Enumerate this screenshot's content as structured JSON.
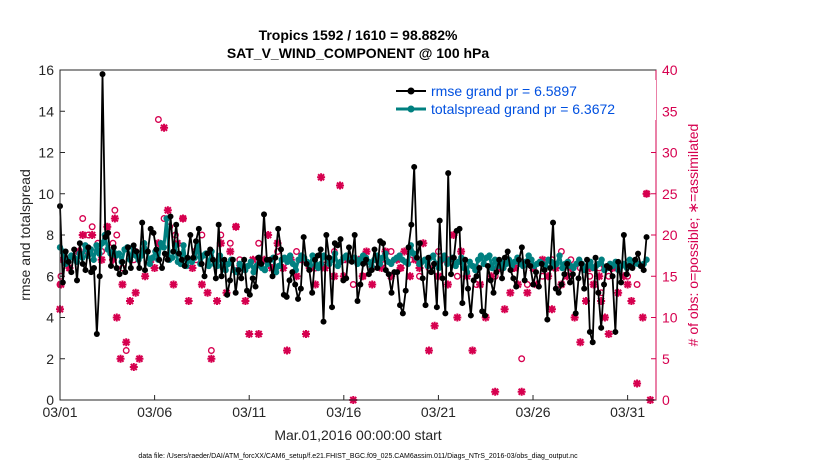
{
  "chart_data": {
    "type": "line",
    "title": "Tropics 1592 / 1610 = 98.882%",
    "subtitle": "SAT_V_WIND_COMPONENT @ 100 hPa",
    "xlabel": "Mar.01,2016 00:00:00 start",
    "ylabel_left": "rmse and totalspread",
    "ylabel_right": "# of obs: o=possible; ∗=assimilated",
    "footer": "data file: /Users/raeder/DAI/ATM_forcXX/CAM6_setup/f.e21.FHIST_BGC.f09_025.CAM6assim.011/Diags_NTrS_2016-03/obs_diag_output.nc",
    "xlim": [
      0,
      31.5
    ],
    "ylim_left": [
      0,
      16
    ],
    "ylim_right": [
      0,
      40
    ],
    "x_ticks": [
      0,
      5,
      10,
      15,
      20,
      25,
      30
    ],
    "x_tick_labels": [
      "03/01",
      "03/06",
      "03/11",
      "03/16",
      "03/21",
      "03/26",
      "03/31"
    ],
    "y_ticks_left": [
      0,
      2,
      4,
      6,
      8,
      10,
      12,
      14,
      16
    ],
    "y_ticks_right": [
      0,
      5,
      10,
      15,
      20,
      25,
      30,
      35,
      40
    ],
    "colors": {
      "rmse": "#000000",
      "spread": "#008080",
      "obs": "#d6004f",
      "legend_text": "#0050e0",
      "right_axis": "#d6004f"
    },
    "series": [
      {
        "name": "rmse grand pr = 6.5897",
        "axis": "left",
        "values": [
          9.4,
          5.7,
          7.2,
          6.7,
          6.2,
          7.3,
          5.8,
          7.6,
          6.6,
          6.3,
          7.4,
          6.2,
          6.4,
          3.2,
          6.0,
          15.8,
          7.9,
          8.1,
          6.5,
          7.4,
          6.4,
          6.1,
          6.7,
          6.2,
          7.4,
          6.4,
          7.5,
          7.2,
          6.4,
          8.6,
          6.3,
          7.2,
          8.3,
          8.1,
          7.3,
          6.8,
          6.4,
          7.1,
          6.8,
          8.9,
          7.2,
          8.5,
          7.1,
          6.8,
          6.5,
          6.9,
          8.0,
          6.9,
          7.7,
          8.3,
          6.6,
          6.0,
          7.1,
          7.3,
          6.8,
          5.9,
          8.5,
          6.0,
          6.8,
          5.1,
          5.8,
          6.8,
          5.2,
          6.3,
          5.9,
          6.8,
          5.3,
          5.1,
          5.9,
          5.5,
          6.9,
          6.6,
          9.0,
          6.8,
          6.8,
          6.0,
          6.9,
          8.3,
          7.3,
          5.1,
          5.0,
          5.8,
          6.2,
          5.6,
          4.9,
          5.4,
          7.9,
          6.6,
          6.3,
          5.2,
          6.8,
          7.0,
          7.3,
          3.8,
          8.0,
          6.9,
          4.5,
          7.6,
          7.5,
          7.8,
          5.8,
          5.9,
          7.4,
          6.7,
          8.0,
          4.8,
          5.6,
          6.6,
          6.8,
          6.1,
          6.3,
          7.3,
          6.4,
          7.7,
          7.6,
          6.3,
          6.1,
          5.2,
          6.2,
          6.2,
          4.6,
          4.2,
          5.3,
          7.4,
          8.5,
          11.3,
          6.9,
          7.6,
          5.9,
          4.6,
          6.9,
          6.2,
          6.6,
          4.5,
          8.7,
          5.9,
          4.2,
          11.0,
          6.1,
          6.9,
          8.2,
          8.3,
          4.7,
          6.8,
          5.4,
          4.1,
          5.8,
          6.0,
          6.4,
          4.3,
          4.1,
          6.5,
          5.8,
          5.2,
          6.2,
          6.8,
          5.9,
          6.9,
          7.2,
          6.3,
          5.9,
          5.5,
          6.8,
          7.4,
          5.8,
          6.7,
          6.5,
          5.6,
          6.2,
          5.5,
          6.6,
          6.3,
          3.9,
          6.4,
          8.6,
          5.4,
          5.2,
          5.6,
          6.1,
          6.6,
          5.7,
          6.1,
          4.2,
          5.9,
          6.6,
          5.4,
          6.8,
          3.3,
          2.8,
          6.9,
          5.2,
          3.5,
          5.6,
          6.5,
          6.4,
          6.0,
          3.3,
          6.7,
          5.7,
          8.0,
          6.1,
          6.5,
          6.4,
          6.8,
          7.1,
          6.5,
          6.3,
          7.9
        ]
      },
      {
        "name": "totalspread grand pr = 6.3672",
        "axis": "left",
        "values": [
          7.4,
          7.2,
          6.6,
          6.8,
          7.0,
          6.9,
          6.7,
          7.1,
          6.9,
          7.5,
          7.0,
          7.3,
          6.8,
          7.5,
          7.1,
          7.6,
          8.0,
          7.3,
          7.1,
          7.2,
          7.0,
          7.1,
          6.7,
          7.3,
          7.4,
          6.8,
          7.4,
          7.0,
          6.8,
          7.0,
          7.6,
          7.2,
          6.6,
          6.9,
          7.2,
          6.8,
          7.6,
          7.4,
          8.8,
          6.8,
          6.9,
          7.5,
          6.7,
          6.6,
          7.5,
          6.5,
          6.8,
          6.7,
          6.9,
          7.5,
          6.6,
          7.0,
          7.1,
          6.5,
          7.2,
          6.6,
          6.5,
          7.0,
          6.4,
          6.3,
          6.6,
          6.8,
          6.3,
          6.2,
          6.6,
          6.4,
          6.3,
          6.5,
          6.7,
          6.2,
          6.5,
          6.9,
          6.4,
          6.3,
          6.6,
          6.8,
          6.9,
          6.2,
          6.5,
          6.8,
          6.9,
          6.7,
          7.0,
          6.6,
          6.3,
          6.8,
          7.0,
          6.9,
          6.7,
          6.5,
          7.0,
          6.6,
          6.4,
          6.6,
          7.0,
          6.9,
          6.6,
          6.8,
          7.1,
          6.5,
          6.7,
          6.9,
          7.0,
          6.8,
          6.8,
          6.9,
          6.6,
          6.8,
          7.0,
          6.9,
          6.7,
          6.5,
          6.8,
          7.0,
          6.6,
          6.9,
          7.1,
          6.7,
          6.6,
          6.8,
          6.9,
          7.0,
          6.8,
          6.7,
          6.6,
          7.5,
          7.1,
          6.9,
          6.6,
          6.7,
          6.8,
          6.5,
          6.9,
          7.0,
          6.6,
          6.4,
          6.8,
          7.0,
          6.6,
          6.8,
          6.9,
          6.5,
          6.7,
          6.9,
          6.4,
          6.2,
          6.7,
          6.5,
          6.3,
          6.8,
          7.0,
          6.6,
          6.9,
          7.0,
          6.4,
          6.8,
          6.5,
          6.7,
          6.4,
          6.6,
          6.8,
          6.5,
          6.7,
          6.9,
          6.6,
          6.5,
          6.7,
          7.0,
          6.8,
          6.5,
          6.6,
          6.7,
          6.6,
          6.5,
          6.8,
          6.7,
          6.5,
          6.6,
          7.0,
          6.4,
          6.6,
          6.7,
          6.5,
          6.4,
          6.6,
          6.8,
          6.6,
          6.3,
          6.5,
          6.7,
          6.4,
          6.5,
          6.6,
          6.8,
          6.3,
          6.4,
          6.6,
          6.5,
          6.7,
          6.3,
          6.5,
          6.6,
          6.4,
          6.8,
          6.5,
          6.7,
          6.6,
          6.5,
          6.6,
          6.8
        ]
      }
    ],
    "obs_possible": [
      [
        0.0,
        14
      ],
      [
        0.05,
        15
      ],
      [
        0.2,
        17
      ],
      [
        0.5,
        16
      ],
      [
        1.0,
        18
      ],
      [
        1.2,
        22
      ],
      [
        1.5,
        20
      ],
      [
        1.7,
        21
      ],
      [
        2.0,
        19
      ],
      [
        2.2,
        18
      ],
      [
        2.5,
        21
      ],
      [
        2.8,
        19
      ],
      [
        2.9,
        23
      ],
      [
        3.0,
        20
      ],
      [
        3.3,
        16
      ],
      [
        3.5,
        6
      ],
      [
        3.9,
        17
      ],
      [
        4.0,
        18
      ],
      [
        5.2,
        34
      ],
      [
        5.5,
        22
      ],
      [
        5.8,
        21
      ],
      [
        6.1,
        20
      ],
      [
        6.5,
        22
      ],
      [
        7.2,
        17
      ],
      [
        7.5,
        20
      ],
      [
        8.0,
        6
      ],
      [
        8.5,
        20
      ],
      [
        9.0,
        19
      ],
      [
        9.3,
        21
      ],
      [
        9.5,
        17
      ],
      [
        10.5,
        19
      ],
      [
        11.5,
        18
      ],
      [
        12.0,
        17
      ],
      [
        12.5,
        18
      ],
      [
        12.8,
        17
      ],
      [
        13.5,
        16
      ],
      [
        14.0,
        17
      ],
      [
        14.5,
        18
      ],
      [
        15.0,
        17
      ],
      [
        15.5,
        14
      ],
      [
        16.0,
        15
      ],
      [
        16.5,
        16
      ],
      [
        17.0,
        17
      ],
      [
        17.5,
        18
      ],
      [
        18.0,
        16
      ],
      [
        18.5,
        17
      ],
      [
        19.0,
        15
      ],
      [
        19.5,
        16
      ],
      [
        20.0,
        18
      ],
      [
        20.5,
        17
      ],
      [
        21.0,
        15
      ],
      [
        22.0,
        14
      ],
      [
        23.0,
        15
      ],
      [
        24.0,
        16
      ],
      [
        24.4,
        5
      ],
      [
        24.7,
        14
      ],
      [
        25.0,
        16
      ],
      [
        25.5,
        15
      ],
      [
        26.0,
        17
      ],
      [
        26.5,
        18
      ],
      [
        27.0,
        17
      ],
      [
        27.5,
        16
      ],
      [
        28.0,
        15
      ],
      [
        28.5,
        16
      ],
      [
        28.6,
        13
      ],
      [
        29.0,
        15
      ],
      [
        29.5,
        16
      ],
      [
        30.0,
        15
      ],
      [
        30.5,
        14
      ],
      [
        31.0,
        25
      ]
    ],
    "obs_assimilated": [
      [
        0.0,
        11
      ],
      [
        0.05,
        14
      ],
      [
        0.2,
        17
      ],
      [
        0.5,
        16
      ],
      [
        1.0,
        18
      ],
      [
        1.2,
        20
      ],
      [
        1.5,
        18
      ],
      [
        1.7,
        20
      ],
      [
        2.0,
        18
      ],
      [
        2.2,
        17
      ],
      [
        2.5,
        21
      ],
      [
        2.8,
        17
      ],
      [
        2.9,
        22
      ],
      [
        3.0,
        10
      ],
      [
        3.2,
        5
      ],
      [
        3.3,
        14
      ],
      [
        3.5,
        7
      ],
      [
        3.7,
        12
      ],
      [
        3.9,
        4
      ],
      [
        4.0,
        13
      ],
      [
        4.2,
        5
      ],
      [
        4.5,
        15
      ],
      [
        4.8,
        17
      ],
      [
        5.0,
        16
      ],
      [
        5.2,
        19
      ],
      [
        5.5,
        33
      ],
      [
        5.7,
        23
      ],
      [
        6.0,
        14
      ],
      [
        6.2,
        19
      ],
      [
        6.5,
        22
      ],
      [
        6.8,
        12
      ],
      [
        7.0,
        16
      ],
      [
        7.2,
        18
      ],
      [
        7.5,
        14
      ],
      [
        7.8,
        13
      ],
      [
        8.0,
        5
      ],
      [
        8.3,
        12
      ],
      [
        8.5,
        19
      ],
      [
        8.8,
        13
      ],
      [
        9.0,
        18
      ],
      [
        9.3,
        21
      ],
      [
        9.5,
        16
      ],
      [
        9.8,
        12
      ],
      [
        10.0,
        8
      ],
      [
        10.2,
        17
      ],
      [
        10.5,
        8
      ],
      [
        10.8,
        17
      ],
      [
        11.0,
        20
      ],
      [
        11.2,
        16
      ],
      [
        11.5,
        19
      ],
      [
        11.8,
        16
      ],
      [
        12.0,
        6
      ],
      [
        12.2,
        17
      ],
      [
        12.5,
        15
      ],
      [
        12.8,
        17
      ],
      [
        13.0,
        8
      ],
      [
        13.2,
        16
      ],
      [
        13.5,
        14
      ],
      [
        13.8,
        27
      ],
      [
        14.0,
        16
      ],
      [
        14.2,
        17
      ],
      [
        14.5,
        15
      ],
      [
        14.8,
        26
      ],
      [
        15.0,
        15
      ],
      [
        15.2,
        17
      ],
      [
        15.5,
        0
      ],
      [
        15.8,
        17
      ],
      [
        16.0,
        15
      ],
      [
        16.2,
        18
      ],
      [
        16.5,
        14
      ],
      [
        16.8,
        17
      ],
      [
        17.0,
        16
      ],
      [
        17.2,
        18
      ],
      [
        17.5,
        15
      ],
      [
        17.8,
        17
      ],
      [
        18.0,
        16
      ],
      [
        18.2,
        18
      ],
      [
        18.5,
        15
      ],
      [
        18.8,
        17
      ],
      [
        19.0,
        16
      ],
      [
        19.2,
        19
      ],
      [
        19.5,
        6
      ],
      [
        19.8,
        9
      ],
      [
        20.0,
        15
      ],
      [
        20.2,
        17
      ],
      [
        20.5,
        14
      ],
      [
        20.8,
        20
      ],
      [
        21.0,
        10
      ],
      [
        21.2,
        18
      ],
      [
        21.5,
        15
      ],
      [
        21.8,
        6
      ],
      [
        22.0,
        16
      ],
      [
        22.2,
        14
      ],
      [
        22.5,
        10
      ],
      [
        22.8,
        15
      ],
      [
        23.0,
        1
      ],
      [
        23.2,
        16
      ],
      [
        23.5,
        11
      ],
      [
        23.8,
        13
      ],
      [
        24.0,
        16
      ],
      [
        24.2,
        14
      ],
      [
        24.4,
        1
      ],
      [
        24.7,
        13
      ],
      [
        25.0,
        16
      ],
      [
        25.2,
        14
      ],
      [
        25.5,
        17
      ],
      [
        25.8,
        15
      ],
      [
        26.0,
        11
      ],
      [
        26.2,
        16
      ],
      [
        26.5,
        14
      ],
      [
        26.8,
        15
      ],
      [
        27.0,
        16
      ],
      [
        27.2,
        10
      ],
      [
        27.5,
        7
      ],
      [
        27.8,
        12
      ],
      [
        28.0,
        16
      ],
      [
        28.2,
        14
      ],
      [
        28.5,
        15
      ],
      [
        28.6,
        12
      ],
      [
        28.8,
        10
      ],
      [
        29.0,
        8
      ],
      [
        29.2,
        16
      ],
      [
        29.5,
        13
      ],
      [
        29.8,
        15
      ],
      [
        30.0,
        14
      ],
      [
        30.2,
        12
      ],
      [
        30.5,
        2
      ],
      [
        30.8,
        10
      ],
      [
        31.0,
        25
      ],
      [
        31.2,
        0
      ]
    ]
  }
}
